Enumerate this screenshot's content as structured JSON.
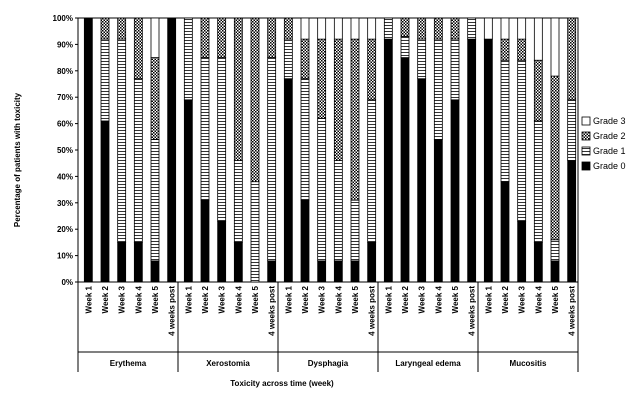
{
  "chart_data": {
    "type": "bar",
    "stacked": true,
    "title": "",
    "ylabel": "Percentage of patients with toxicity",
    "xlabel": "Toxicity across time (week)",
    "ylim": [
      0,
      100
    ],
    "yticks": [
      "0%",
      "10%",
      "20%",
      "30%",
      "40%",
      "50%",
      "60%",
      "70%",
      "80%",
      "90%",
      "100%"
    ],
    "legend_position": "right",
    "categories": [
      "Week 1",
      "Week 2",
      "Week 3",
      "Week 4",
      "Week 5",
      "4 weeks post"
    ],
    "groups": [
      {
        "name": "Erythema",
        "values": {
          "Grade 0": [
            100,
            61,
            15,
            15,
            8,
            100
          ],
          "Grade 1": [
            0,
            31,
            77,
            62,
            46,
            0
          ],
          "Grade 2": [
            0,
            8,
            8,
            23,
            31,
            0
          ],
          "Grade 3": [
            0,
            0,
            0,
            0,
            15,
            0
          ]
        }
      },
      {
        "name": "Xerostomia",
        "values": {
          "Grade 0": [
            69,
            31,
            23,
            15,
            0,
            8
          ],
          "Grade 1": [
            31,
            54,
            62,
            31,
            38,
            77
          ],
          "Grade 2": [
            0,
            15,
            15,
            54,
            62,
            15
          ],
          "Grade 3": [
            0,
            0,
            0,
            0,
            0,
            0
          ]
        }
      },
      {
        "name": "Dysphagia",
        "values": {
          "Grade 0": [
            77,
            31,
            8,
            8,
            8,
            15
          ],
          "Grade 1": [
            15,
            46,
            54,
            38,
            23,
            54
          ],
          "Grade 2": [
            8,
            15,
            30,
            46,
            61,
            23
          ],
          "Grade 3": [
            0,
            8,
            8,
            8,
            8,
            8
          ]
        }
      },
      {
        "name": "Laryngeal edema",
        "values": {
          "Grade 0": [
            92,
            85,
            77,
            54,
            69,
            92
          ],
          "Grade 1": [
            8,
            8,
            15,
            38,
            23,
            8
          ],
          "Grade 2": [
            0,
            7,
            8,
            8,
            8,
            0
          ],
          "Grade 3": [
            0,
            0,
            0,
            0,
            0,
            0
          ]
        }
      },
      {
        "name": "Mucositis",
        "values": {
          "Grade 0": [
            92,
            38,
            23,
            15,
            8,
            46
          ],
          "Grade 1": [
            0,
            46,
            61,
            46,
            8,
            23
          ],
          "Grade 2": [
            0,
            8,
            8,
            23,
            62,
            31
          ],
          "Grade 3": [
            8,
            8,
            8,
            16,
            22,
            0
          ]
        }
      }
    ],
    "series": [
      {
        "name": "Grade 3",
        "pattern": "white"
      },
      {
        "name": "Grade 2",
        "pattern": "crosshatch"
      },
      {
        "name": "Grade 1",
        "pattern": "horizontal-lines"
      },
      {
        "name": "Grade 0",
        "pattern": "solid-black"
      }
    ],
    "colors": {
      "grade0": "#000000",
      "frame": "#000000",
      "background": "#ffffff"
    }
  }
}
